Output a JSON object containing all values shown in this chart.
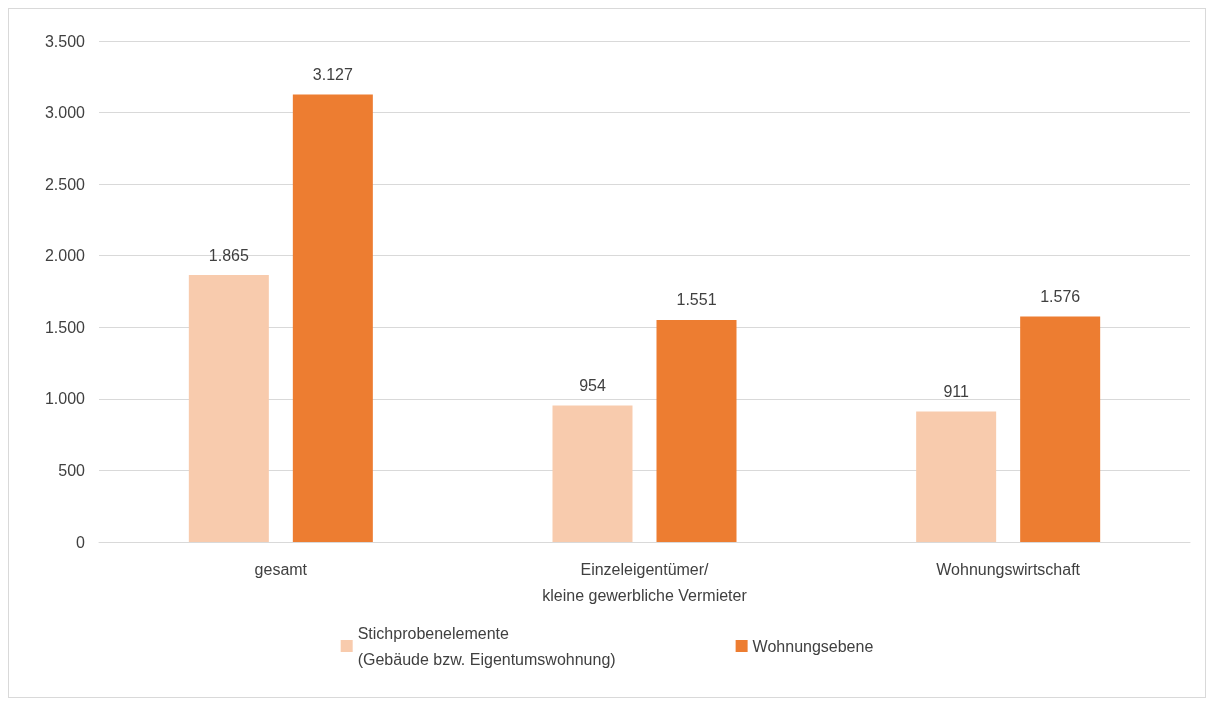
{
  "chart_data": {
    "type": "bar",
    "categories": [
      "gesamt",
      "Einzeleigentümer/\nkleine gewerbliche Vermieter",
      "Wohnungswirtschaft"
    ],
    "series": [
      {
        "name": "Stichprobenelemente\n(Gebäude bzw. Eigentumswohnung)",
        "color": "#f8cbad",
        "values": [
          1865,
          954,
          911
        ],
        "value_labels": [
          "1.865",
          "954",
          "911"
        ]
      },
      {
        "name": "Wohnungsebene",
        "color": "#ed7d31",
        "values": [
          3127,
          1551,
          1576
        ],
        "value_labels": [
          "3.127",
          "1.551",
          "1.576"
        ]
      }
    ],
    "ylim": [
      0,
      3500
    ],
    "yticks": [
      0,
      {
        "value": 500,
        "label": "500"
      },
      {
        "value": 1000,
        "label": "1.000"
      },
      {
        "value": 1500,
        "label": "1.500"
      },
      {
        "value": 2000,
        "label": "2.000"
      },
      {
        "value": 2500,
        "label": "2.500"
      },
      {
        "value": 3000,
        "label": "3.000"
      },
      {
        "value": 3500,
        "label": "3.500"
      }
    ],
    "grid": "y",
    "legend": "bottom"
  }
}
